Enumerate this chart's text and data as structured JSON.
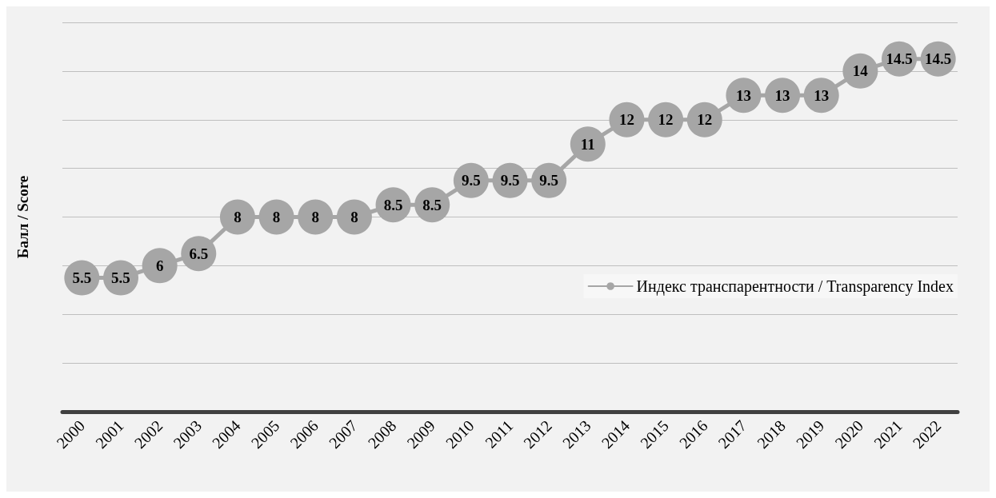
{
  "chart_data": {
    "type": "line",
    "ylabel": "Балл / Score",
    "categories": [
      "2000",
      "2001",
      "2002",
      "2003",
      "2004",
      "2005",
      "2006",
      "2007",
      "2008",
      "2009",
      "2010",
      "2011",
      "2012",
      "2013",
      "2014",
      "2015",
      "2016",
      "2017",
      "2018",
      "2019",
      "2020",
      "2021",
      "2022"
    ],
    "series": [
      {
        "name": "Индекс транспарентности / Transparency Index",
        "color": "#a6a6a6",
        "values": [
          5.5,
          5.5,
          6,
          6.5,
          8,
          8,
          8,
          8,
          8.5,
          8.5,
          9.5,
          9.5,
          9.5,
          11,
          12,
          12,
          12,
          13,
          13,
          13,
          14,
          14.5,
          14.5
        ]
      }
    ],
    "ylim": [
      0,
      16
    ],
    "yticks": [
      0,
      2,
      4,
      6,
      8,
      10,
      12,
      14,
      16
    ],
    "tick_labels": "x",
    "grid": "y",
    "legend": "right",
    "marker": "circle",
    "line_style": "solid",
    "data_labels": true
  }
}
